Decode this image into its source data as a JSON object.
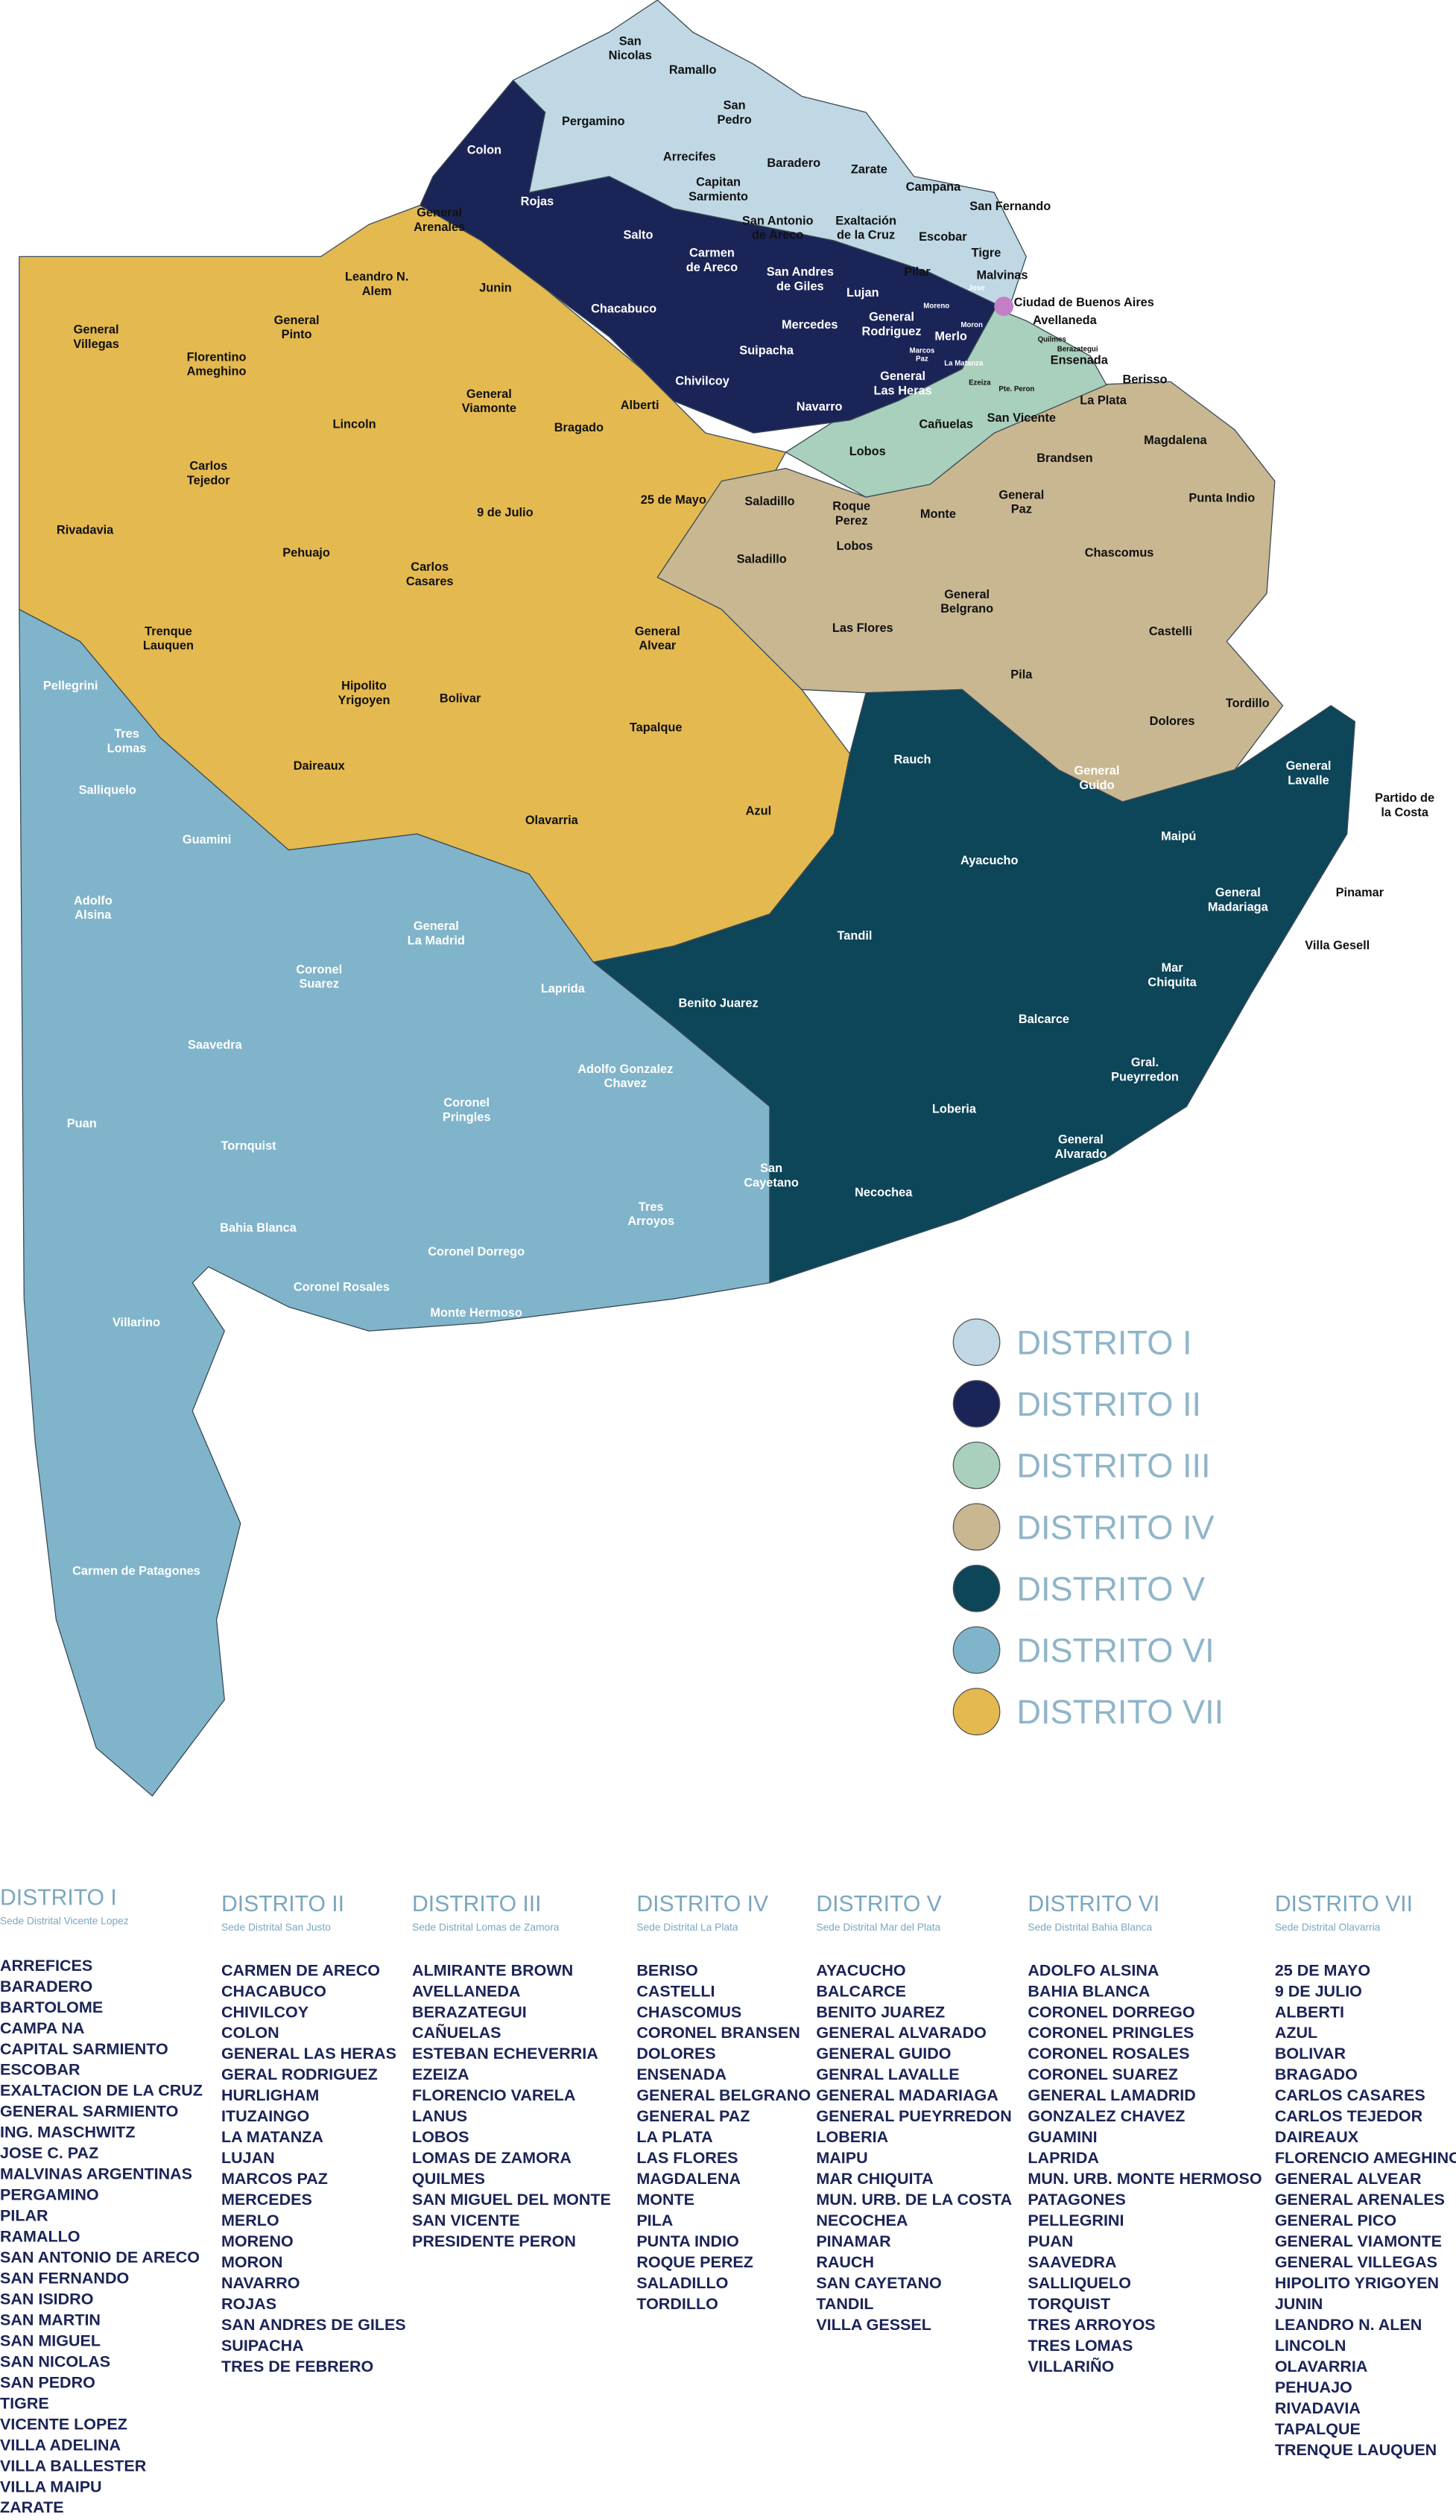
{
  "map": {
    "labels": [
      [
        "San",
        "Nicolas"
      ],
      [
        "Ramallo"
      ],
      [
        "Pergamino"
      ],
      [
        "San",
        "Pedro"
      ],
      [
        "Colon"
      ],
      [
        "Arrecifes"
      ],
      [
        "Baradero"
      ],
      [
        "Zarate"
      ],
      [
        "Capitan",
        "Sarmiento"
      ],
      [
        "Campana"
      ],
      [
        "Rojas"
      ],
      [
        "San Fernando"
      ],
      [
        "General",
        "Arenales"
      ],
      [
        "San Antonio",
        "de Areco"
      ],
      [
        "Exaltación",
        "de la Cruz"
      ],
      [
        "Salto"
      ],
      [
        "Escobar"
      ],
      [
        "Tigre"
      ],
      [
        "Carmen",
        "de Areco"
      ],
      [
        "Leandro N.",
        "Alem"
      ],
      [
        "San Andres",
        "de Giles"
      ],
      [
        "Junin"
      ],
      [
        "Pilar"
      ],
      [
        "Malvinas"
      ],
      [
        "Lujan"
      ],
      [
        "Ciudad de Buenos Aires"
      ],
      [
        "Chacabuco"
      ],
      [
        "Mercedes"
      ],
      [
        "General",
        "Rodriguez"
      ],
      [
        "Avellaneda"
      ],
      [
        "General",
        "Villegas"
      ],
      [
        "General",
        "Pinto"
      ],
      [
        "Florentino",
        "Ameghino"
      ],
      [
        "Suipacha"
      ],
      [
        "Merlo"
      ],
      [
        "Ensenada"
      ],
      [
        "Chivilcoy"
      ],
      [
        "General",
        "Las Heras"
      ],
      [
        "Berisso"
      ],
      [
        "General",
        "Viamonte"
      ],
      [
        "La Plata"
      ],
      [
        "Alberti"
      ],
      [
        "Navarro"
      ],
      [
        "Cañuelas"
      ],
      [
        "San Vicente"
      ],
      [
        "Lincoln"
      ],
      [
        "Bragado"
      ],
      [
        "Magdalena"
      ],
      [
        "Lobos"
      ],
      [
        "Carlos",
        "Tejedor"
      ],
      [
        "Brandsen"
      ],
      [
        "Saladillo"
      ],
      [
        "25 de Mayo"
      ],
      [
        "9 de Julio"
      ],
      [
        "Roque",
        "Perez"
      ],
      [
        "Monte"
      ],
      [
        "General",
        "Paz"
      ],
      [
        "Punta Indio"
      ],
      [
        "Rivadavia"
      ],
      [
        "Lobos"
      ],
      [
        "Saladillo"
      ],
      [
        "Chascomus"
      ],
      [
        "Carlos",
        "Casares"
      ],
      [
        "Pehuajo"
      ],
      [
        "General",
        "Belgrano"
      ],
      [
        "Trenque",
        "Lauquen"
      ],
      [
        "Las Flores"
      ],
      [
        "General",
        "Alvear"
      ],
      [
        "Castelli"
      ],
      [
        "Pila"
      ],
      [
        "Pellegrini"
      ],
      [
        "Hipolito",
        "Yrigoyen"
      ],
      [
        "Bolivar"
      ],
      [
        "Tordillo"
      ],
      [
        "Tres",
        "Lomas"
      ],
      [
        "Tapalque"
      ],
      [
        "Dolores"
      ],
      [
        "Rauch"
      ],
      [
        "General",
        "Lavalle"
      ],
      [
        "Salliquelo"
      ],
      [
        "Daireaux"
      ],
      [
        "General",
        "Guido"
      ],
      [
        "Partido de",
        "la Costa"
      ],
      [
        "Azul"
      ],
      [
        "Olavarria"
      ],
      [
        "Guamini"
      ],
      [
        "Maipú"
      ],
      [
        "Ayacucho"
      ],
      [
        "Adolfo",
        "Alsina"
      ],
      [
        "Pinamar"
      ],
      [
        "General",
        "Madariaga"
      ],
      [
        "Tandil"
      ],
      [
        "General",
        "La Madrid"
      ],
      [
        "Villa Gesell"
      ],
      [
        "Coronel",
        "Suarez"
      ],
      [
        "Laprida"
      ],
      [
        "Mar",
        "Chiquita"
      ],
      [
        "Benito Juarez"
      ],
      [
        "Balcarce"
      ],
      [
        "Saavedra"
      ],
      [
        "Adolfo Gonzalez",
        "Chavez"
      ],
      [
        "Gral.",
        "Pueyrredon"
      ],
      [
        "Coronel",
        "Pringles"
      ],
      [
        "Loberia"
      ],
      [
        "Puan"
      ],
      [
        "Tornquist"
      ],
      [
        "General",
        "Alvarado"
      ],
      [
        "San",
        "Cayetano"
      ],
      [
        "Necochea"
      ],
      [
        "Tres",
        "Arroyos"
      ],
      [
        "Bahia Blanca"
      ],
      [
        "Coronel Dorrego"
      ],
      [
        "Coronel Rosales"
      ],
      [
        "Monte Hermoso"
      ],
      [
        "Villarino"
      ],
      [
        "Carmen de Patagones"
      ],
      [
        "Jose"
      ],
      [
        "Moreno"
      ],
      [
        "Moron"
      ],
      [
        "Marcos",
        "Paz"
      ],
      [
        "La Matanza"
      ],
      [
        "Quilmes"
      ],
      [
        "Berazategui"
      ],
      [
        "Ezeiza"
      ],
      [
        "Pte. Peron"
      ]
    ]
  },
  "legend": [
    {
      "name": "DISTRITO I",
      "color": "#bfd8e4"
    },
    {
      "name": "DISTRITO II",
      "color": "#1b2457"
    },
    {
      "name": "DISTRITO III",
      "color": "#a9cfbd"
    },
    {
      "name": "DISTRITO IV",
      "color": "#c8b791"
    },
    {
      "name": "DISTRITO V",
      "color": "#0d4559"
    },
    {
      "name": "DISTRITO VI",
      "color": "#80b4ca"
    },
    {
      "name": "DISTRITO VII",
      "color": "#e4b950"
    }
  ],
  "lists": [
    {
      "title": "DISTRITO I",
      "subtitle": "Sede Distrital Vicente Lopez",
      "items": [
        "ARREFICES",
        "BARADERO",
        "BARTOLOME",
        "CAMPA NA",
        "CAPITAL SARMIENTO",
        "ESCOBAR",
        "EXALTACION DE LA CRUZ",
        "GENERAL SARMIENTO",
        "ING.  MASCHWITZ",
        "JOSE C. PAZ",
        "MALVINAS ARGENTINAS",
        "PERGAMINO",
        "PILAR",
        "RAMALLO",
        "SAN ANTONIO DE ARECO",
        "SAN FERNANDO",
        "SAN ISIDRO",
        "SAN MARTIN",
        "SAN MIGUEL",
        "SAN NICOLAS",
        "SAN PEDRO",
        "TIGRE",
        "VICENTE LOPEZ",
        "VILLA ADELINA",
        "VILLA BALLESTER",
        "VILLA MAIPU",
        "ZARATE"
      ]
    },
    {
      "title": "DISTRITO II",
      "subtitle": "Sede Distrital San Justo",
      "items": [
        "CARMEN DE ARECO",
        "CHACABUCO",
        "CHIVILCOY",
        "COLON",
        "GENERAL LAS HERAS",
        "GERAL RODRIGUEZ",
        "HURLIGHAM",
        "ITUZAINGO",
        "LA MATANZA",
        "LUJAN",
        "MARCOS PAZ",
        "MERCEDES",
        "MERLO",
        "MORENO",
        "MORON",
        "NAVARRO",
        "ROJAS",
        "SAN ANDRES DE GILES",
        "SUIPACHA",
        "TRES DE FEBRERO"
      ]
    },
    {
      "title": "DISTRITO III",
      "subtitle": "Sede Distrital Lomas de Zamora",
      "items": [
        "ALMIRANTE BROWN",
        "AVELLANEDA",
        "BERAZATEGUI",
        "CAÑUELAS",
        "ESTEBAN ECHEVERRIA",
        "EZEIZA",
        "FLORENCIO VARELA",
        "LANUS",
        "LOBOS",
        "LOMAS DE ZAMORA",
        "QUILMES",
        "SAN MIGUEL DEL MONTE",
        "SAN VICENTE",
        "PRESIDENTE PERON"
      ]
    },
    {
      "title": "DISTRITO IV",
      "subtitle": "Sede Distrital La Plata",
      "items": [
        "BERISO",
        "CASTELLI",
        "CHASCOMUS",
        "CORONEL BRANSEN",
        "DOLORES",
        "ENSENADA",
        "GENERAL BELGRANO",
        "GENERAL PAZ",
        "LA PLATA",
        "LAS FLORES",
        "MAGDALENA",
        "MONTE",
        "PILA",
        "PUNTA INDIO",
        "ROQUE PEREZ",
        "SALADILLO",
        "TORDILLO"
      ]
    },
    {
      "title": "DISTRITO V",
      "subtitle": "Sede Distrital Mar del Plata",
      "items": [
        "AYACUCHO",
        "BALCARCE",
        "BENITO JUAREZ",
        "GENERAL ALVARADO",
        "GENERAL GUIDO",
        "GENRAL LAVALLE",
        "GENERAL MADARIAGA",
        "GENERAL PUEYRREDON",
        "LOBERIA",
        "MAIPU",
        "MAR CHIQUITA",
        "MUN. URB. DE LA COSTA",
        "NECOCHEA",
        "PINAMAR",
        "RAUCH",
        "SAN CAYETANO",
        "TANDIL",
        "VILLA GESSEL"
      ]
    },
    {
      "title": "DISTRITO VI",
      "subtitle": "Sede Distrital Bahia Blanca",
      "items": [
        "ADOLFO ALSINA",
        "BAHIA BLANCA",
        "CORONEL DORREGO",
        "CORONEL PRINGLES",
        "CORONEL ROSALES",
        "CORONEL SUAREZ",
        "GENERAL LAMADRID",
        "GONZALEZ CHAVEZ",
        "GUAMINI",
        "LAPRIDA",
        "MUN. URB. MONTE HERMOSO",
        "PATAGONES",
        "PELLEGRINI",
        "PUAN",
        "SAAVEDRA",
        "SALLIQUELO",
        "TORQUIST",
        "TRES ARROYOS",
        "TRES LOMAS",
        "VILLARIÑO"
      ]
    },
    {
      "title": "DISTRITO VII",
      "subtitle": "Sede Distrital Olavarria",
      "items": [
        "25 DE MAYO",
        "9 DE JULIO",
        "ALBERTI",
        "AZUL",
        "BOLIVAR",
        "BRAGADO",
        "CARLOS CASARES",
        "CARLOS TEJEDOR",
        "DAIREAUX",
        "FLORENCIO AMEGHINO",
        "GENERAL ALVEAR",
        "GENERAL ARENALES",
        "GENERAL PICO",
        "GENERAL VIAMONTE",
        "GENERAL VILLEGAS",
        "HIPOLITO YRIGOYEN",
        "JUNIN",
        "LEANDRO N. ALEN",
        "LINCOLN",
        "OLAVARRIA",
        "PEHUAJO",
        "RIVADAVIA",
        "TAPALQUE",
        "TRENQUE LAUQUEN"
      ]
    }
  ]
}
